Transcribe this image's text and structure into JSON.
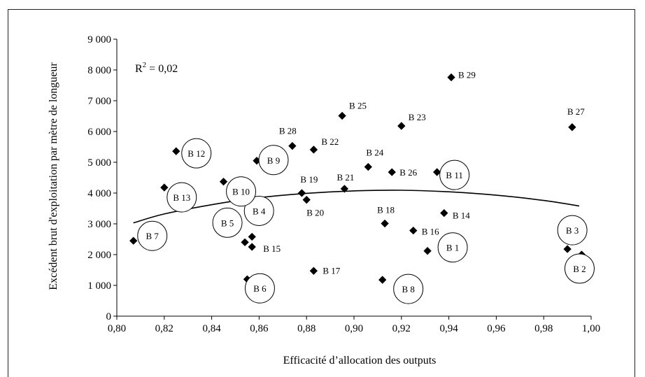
{
  "chart_data": {
    "type": "scatter",
    "xlabel": "Efficacité d’allocation des outputs",
    "ylabel": "Excédent brut d'exploitation par mètre de longueur",
    "xlim": [
      0.8,
      1.0
    ],
    "ylim": [
      0,
      9000
    ],
    "x_ticks": [
      "0,80",
      "0,82",
      "0,84",
      "0,86",
      "0,88",
      "0,90",
      "0,92",
      "0,94",
      "0,96",
      "0,98",
      "1,00"
    ],
    "y_ticks": [
      "0",
      "1 000",
      "2 000",
      "3 000",
      "4 000",
      "5 000",
      "6 000",
      "7 000",
      "8 000",
      "9 000"
    ],
    "r2": {
      "base": "R",
      "sup": "2",
      "rest": " = 0,02"
    },
    "trendline": {
      "type": "polynomial",
      "x": [
        0.807,
        0.82,
        0.84,
        0.86,
        0.88,
        0.9,
        0.92,
        0.94,
        0.96,
        0.98,
        0.995
      ],
      "y": [
        3030,
        3320,
        3620,
        3850,
        3990,
        4070,
        4090,
        4040,
        3930,
        3760,
        3580
      ]
    },
    "points": [
      {
        "label": "B 1",
        "x": 0.931,
        "y": 2120,
        "circled": true
      },
      {
        "label": "B 2",
        "x": 0.996,
        "y": 2000,
        "circled": true
      },
      {
        "label": "B 3",
        "x": 0.99,
        "y": 2180,
        "circled": true
      },
      {
        "label": "B 4",
        "x": 0.857,
        "y": 2580,
        "circled": true
      },
      {
        "label": "B 5",
        "x": 0.854,
        "y": 2400,
        "circled": true
      },
      {
        "label": "B 6",
        "x": 0.855,
        "y": 1200,
        "circled": true
      },
      {
        "label": "B 7",
        "x": 0.807,
        "y": 2450,
        "circled": true
      },
      {
        "label": "B 8",
        "x": 0.912,
        "y": 1180,
        "circled": true
      },
      {
        "label": "B 9",
        "x": 0.859,
        "y": 5050,
        "circled": true
      },
      {
        "label": "B 10",
        "x": 0.845,
        "y": 4370,
        "circled": true
      },
      {
        "label": "B 11",
        "x": 0.935,
        "y": 4680,
        "circled": true
      },
      {
        "label": "B 12",
        "x": 0.825,
        "y": 5360,
        "circled": true
      },
      {
        "label": "B 13",
        "x": 0.82,
        "y": 4180,
        "circled": true
      },
      {
        "label": "B 14",
        "x": 0.938,
        "y": 3350,
        "circled": false
      },
      {
        "label": "B 15",
        "x": 0.857,
        "y": 2250,
        "circled": false
      },
      {
        "label": "B 16",
        "x": 0.925,
        "y": 2780,
        "circled": false
      },
      {
        "label": "B 17",
        "x": 0.883,
        "y": 1470,
        "circled": false
      },
      {
        "label": "B 18",
        "x": 0.913,
        "y": 3010,
        "circled": false
      },
      {
        "label": "B 19",
        "x": 0.878,
        "y": 4000,
        "circled": false
      },
      {
        "label": "B 20",
        "x": 0.88,
        "y": 3780,
        "circled": false
      },
      {
        "label": "B 21",
        "x": 0.896,
        "y": 4140,
        "circled": false
      },
      {
        "label": "B 22",
        "x": 0.883,
        "y": 5410,
        "circled": false
      },
      {
        "label": "B 23",
        "x": 0.92,
        "y": 6180,
        "circled": false
      },
      {
        "label": "B 24",
        "x": 0.906,
        "y": 4850,
        "circled": false
      },
      {
        "label": "B 25",
        "x": 0.895,
        "y": 6510,
        "circled": false
      },
      {
        "label": "B 26",
        "x": 0.916,
        "y": 4680,
        "circled": false
      },
      {
        "label": "B 27",
        "x": 0.992,
        "y": 6140,
        "circled": false
      },
      {
        "label": "B 28",
        "x": 0.874,
        "y": 5530,
        "circled": false
      },
      {
        "label": "B 29",
        "x": 0.941,
        "y": 7760,
        "circled": false
      }
    ]
  }
}
